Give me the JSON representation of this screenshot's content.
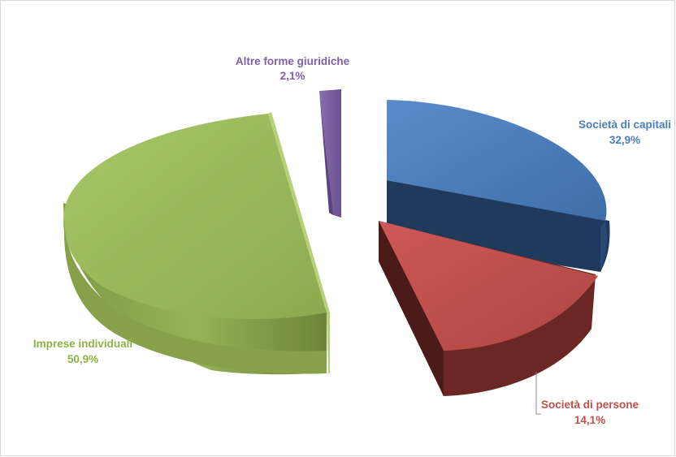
{
  "chart_data": {
    "type": "pie",
    "style": "3d-exploded",
    "title": "",
    "legend": "none",
    "slices": [
      {
        "label": "Società di capitali",
        "value": 32.9,
        "value_text": "32,9%",
        "color": "#4f81bd"
      },
      {
        "label": "Società di persone",
        "value": 14.1,
        "value_text": "14,1%",
        "color": "#c0504d"
      },
      {
        "label": "Imprese individuali",
        "value": 50.9,
        "value_text": "50,9%",
        "color": "#9bbb59"
      },
      {
        "label": "Altre forme giuridiche",
        "value": 2.1,
        "value_text": "2,1%",
        "color": "#8064a2"
      }
    ]
  }
}
